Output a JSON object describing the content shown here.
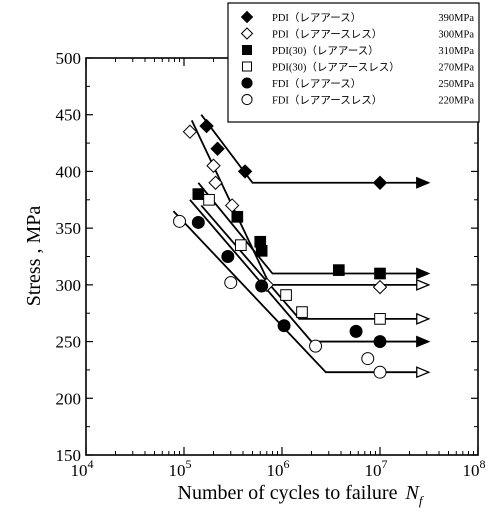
{
  "chart_data": {
    "type": "scatter",
    "xscale": "log",
    "xlim": [
      10000,
      100000000
    ],
    "ylim": [
      150,
      500
    ],
    "xlabel": "Number of cycles to failure",
    "xlabel_var": "N",
    "xlabel_sub": "f",
    "ylabel": "Stress , MPa",
    "x_exponents": [
      "4",
      "5",
      "6",
      "7",
      "8"
    ],
    "y_ticks": [
      150,
      200,
      250,
      300,
      350,
      400,
      450,
      500
    ],
    "legend_position": "top-right",
    "series": [
      {
        "name": "PDI（レアアース）",
        "limit": "390MPa",
        "marker": "diamond",
        "filled": true,
        "points": [
          [
            170000,
            440
          ],
          [
            220000,
            420
          ],
          [
            420000,
            400
          ]
        ],
        "runouts": [
          [
            10000000,
            390
          ]
        ],
        "fit": [
          [
            150000,
            450
          ],
          [
            500000,
            390
          ],
          [
            30000000,
            390
          ]
        ]
      },
      {
        "name": "PDI（レアアースレス）",
        "limit": "300MPa",
        "marker": "diamond",
        "filled": false,
        "points": [
          [
            115000,
            435
          ],
          [
            200000,
            405
          ],
          [
            210000,
            390
          ],
          [
            310000,
            370
          ],
          [
            700000,
            300
          ]
        ],
        "runouts": [
          [
            10000000,
            298
          ]
        ],
        "fit": [
          [
            120000,
            445
          ],
          [
            750000,
            300
          ],
          [
            30000000,
            300
          ]
        ]
      },
      {
        "name": "PDI(30)（レアアース）",
        "limit": "310MPa",
        "marker": "square",
        "filled": true,
        "points": [
          [
            140000,
            380
          ],
          [
            350000,
            360
          ],
          [
            600000,
            338
          ],
          [
            620000,
            330
          ],
          [
            3800000,
            313
          ]
        ],
        "runouts": [
          [
            10000000,
            310
          ]
        ],
        "fit": [
          [
            140000,
            390
          ],
          [
            800000,
            310
          ],
          [
            30000000,
            310
          ]
        ]
      },
      {
        "name": "PDI(30)（レアアースレス）",
        "limit": "270MPa",
        "marker": "square",
        "filled": false,
        "points": [
          [
            180000,
            375
          ],
          [
            380000,
            335
          ],
          [
            1100000,
            291
          ],
          [
            1600000,
            276
          ]
        ],
        "runouts": [
          [
            10000000,
            270
          ]
        ],
        "fit": [
          [
            150000,
            370
          ],
          [
            1500000,
            270
          ],
          [
            30000000,
            270
          ]
        ]
      },
      {
        "name": "FDI（レアアース）",
        "limit": "250MPa",
        "marker": "circle",
        "filled": true,
        "points": [
          [
            140000,
            355
          ],
          [
            280000,
            325
          ],
          [
            620000,
            299
          ],
          [
            1050000,
            264
          ],
          [
            5700000,
            259
          ]
        ],
        "runouts": [
          [
            10000000,
            250
          ]
        ],
        "fit": [
          [
            115000,
            375
          ],
          [
            2000000,
            250
          ],
          [
            30000000,
            250
          ]
        ]
      },
      {
        "name": "FDI（レアアースレス）",
        "limit": "220MPa",
        "marker": "circle",
        "filled": false,
        "points": [
          [
            90000,
            356
          ],
          [
            300000,
            302
          ],
          [
            2200000,
            246
          ],
          [
            7500000,
            235
          ]
        ],
        "runouts": [
          [
            10000000,
            223
          ]
        ],
        "fit": [
          [
            78000,
            365
          ],
          [
            2800000,
            223
          ],
          [
            30000000,
            223
          ]
        ]
      }
    ]
  }
}
